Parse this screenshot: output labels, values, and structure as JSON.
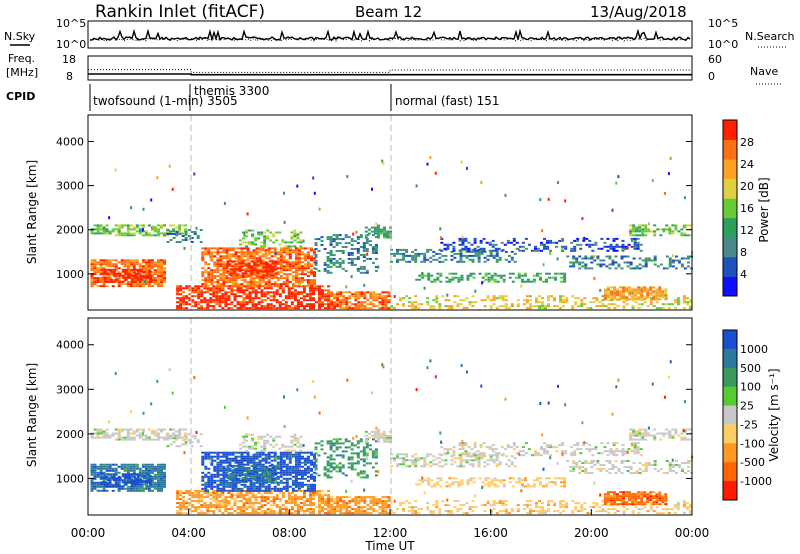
{
  "header": {
    "station": "Rankin Inlet (fitACF)",
    "beam": "Beam 12",
    "date": "13/Aug/2018"
  },
  "strip_labels": {
    "nsky": "N.Sky",
    "nsearch": "N.Search",
    "freq_line1": "Freq.",
    "freq_line2": "[MHz]",
    "nave": "Nave",
    "cpid": "CPID"
  },
  "cpid_segments": [
    {
      "label": "twofsound (1-min) 3505"
    },
    {
      "label": "themis 3300"
    },
    {
      "label": "normal (fast) 151"
    }
  ],
  "chart_data": [
    {
      "type": "line",
      "name": "noise",
      "series": [
        {
          "name": "N.Sky",
          "style": "solid"
        },
        {
          "name": "N.Search",
          "style": "dotted"
        }
      ],
      "yticks_left": [
        "10^5",
        "10^0"
      ],
      "yticks_right": [
        "10^5",
        "10^0"
      ]
    },
    {
      "type": "line",
      "name": "frequency-nave",
      "series": [
        {
          "name": "Freq.",
          "style": "solid",
          "x": [
            0,
            4.1,
            4.1,
            24
          ],
          "y": [
            10.5,
            10.5,
            10.2,
            10.2
          ]
        },
        {
          "name": "Nave",
          "style": "dotted",
          "x": [
            0,
            4.1,
            4.1,
            12,
            12,
            24
          ],
          "y": [
            26,
            26,
            19,
            19,
            25,
            25
          ]
        }
      ],
      "ylim_left": [
        8,
        18
      ],
      "yticks_left": [
        "18",
        "8"
      ],
      "ylim_right": [
        0,
        60
      ],
      "yticks_right": [
        "60",
        "0"
      ]
    },
    {
      "type": "heatmap",
      "name": "power",
      "ylabel": "Slant Range [km]",
      "ylim": [
        180,
        4600
      ],
      "yticks": [
        1000,
        2000,
        3000,
        4000
      ],
      "colorbar_label": "Power [dB]",
      "colorbar_ticks": [
        "4",
        "8",
        "12",
        "16",
        "20",
        "24",
        "28"
      ],
      "colorbar_colors": [
        "#1010ff",
        "#2050c0",
        "#4a8a8a",
        "#2aa05a",
        "#66cc33",
        "#e0d040",
        "#ffa020",
        "#ff7010",
        "#ff2000"
      ]
    },
    {
      "type": "heatmap",
      "name": "velocity",
      "ylabel": "Slant Range [km]",
      "xlabel": "Time UT",
      "ylim": [
        180,
        4600
      ],
      "yticks": [
        1000,
        2000,
        3000,
        4000
      ],
      "xticks": [
        "00:00",
        "04:00",
        "08:00",
        "12:00",
        "16:00",
        "20:00",
        "00:00"
      ],
      "xlim_hours": [
        0,
        24
      ],
      "colorbar_label": "Velocity [m s⁻¹]",
      "colorbar_ticks": [
        "1000",
        "500",
        "100",
        "25",
        "-25",
        "-100",
        "-500",
        "-1000"
      ],
      "colorbar_colors": [
        "#1a4fd0",
        "#2a7aa0",
        "#3a9a60",
        "#55cc33",
        "#c8c8c8",
        "#ffcc66",
        "#ff9922",
        "#ff6600",
        "#ff1a00"
      ]
    }
  ],
  "mode_changes_hours": [
    4,
    12
  ]
}
